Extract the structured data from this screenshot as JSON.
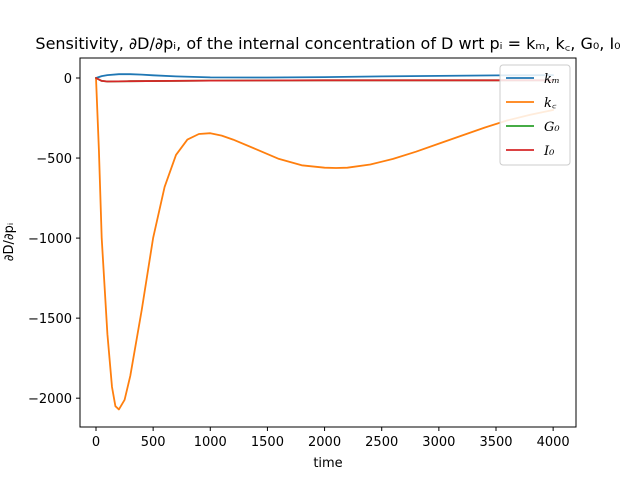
{
  "chart_data": {
    "type": "line",
    "title": "Sensitivity, ∂D/∂pᵢ, of the internal concentration of D wrt pᵢ = kₘ, k꜀, G₀, I₀",
    "xlabel": "time",
    "ylabel": "∂D/∂pᵢ",
    "xlim": [
      -140,
      4200
    ],
    "ylim": [
      -2180,
      125
    ],
    "xticks": [
      0,
      500,
      1000,
      1500,
      2000,
      2500,
      3000,
      3500,
      4000
    ],
    "yticks": [
      0,
      -500,
      -1000,
      -1500,
      -2000
    ],
    "xtick_labels": [
      "0",
      "500",
      "1000",
      "1500",
      "2000",
      "2500",
      "3000",
      "3500",
      "4000"
    ],
    "ytick_labels": [
      "0",
      "−500",
      "−1000",
      "−1500",
      "−2000"
    ],
    "legend_position": "upper-right",
    "series": [
      {
        "name": "kₘ",
        "color": "#1f77b4",
        "x": [
          0,
          50,
          100,
          200,
          300,
          400,
          500,
          700,
          1000,
          1500,
          2000,
          2500,
          3000,
          3500,
          4000
        ],
        "y": [
          0,
          12,
          18,
          24,
          24,
          21,
          17,
          10,
          4,
          3,
          6,
          10,
          13,
          16,
          18
        ]
      },
      {
        "name": "k꜀",
        "color": "#ff7f0e",
        "x": [
          0,
          25,
          50,
          100,
          140,
          170,
          200,
          250,
          300,
          400,
          500,
          600,
          700,
          800,
          900,
          1000,
          1100,
          1200,
          1400,
          1600,
          1800,
          2000,
          2100,
          2200,
          2400,
          2600,
          2800,
          3000,
          3200,
          3400,
          3600,
          3800,
          4000
        ],
        "y": [
          0,
          -450,
          -1000,
          -1600,
          -1930,
          -2050,
          -2070,
          -2010,
          -1860,
          -1450,
          -1000,
          -680,
          -480,
          -385,
          -350,
          -345,
          -360,
          -385,
          -445,
          -505,
          -545,
          -560,
          -562,
          -560,
          -540,
          -505,
          -460,
          -410,
          -360,
          -310,
          -265,
          -230,
          -200
        ]
      },
      {
        "name": "G₀",
        "color": "#2ca02c",
        "x": [
          0,
          50,
          100,
          300,
          1000,
          2000,
          3000,
          4000
        ],
        "y": [
          0,
          -18,
          -22,
          -20,
          -16,
          -14,
          -14,
          -14
        ]
      },
      {
        "name": "I₀",
        "color": "#d62728",
        "x": [
          0,
          50,
          100,
          300,
          1000,
          2000,
          3000,
          4000
        ],
        "y": [
          0,
          -18,
          -22,
          -20,
          -16,
          -14,
          -14,
          -14
        ]
      }
    ]
  }
}
